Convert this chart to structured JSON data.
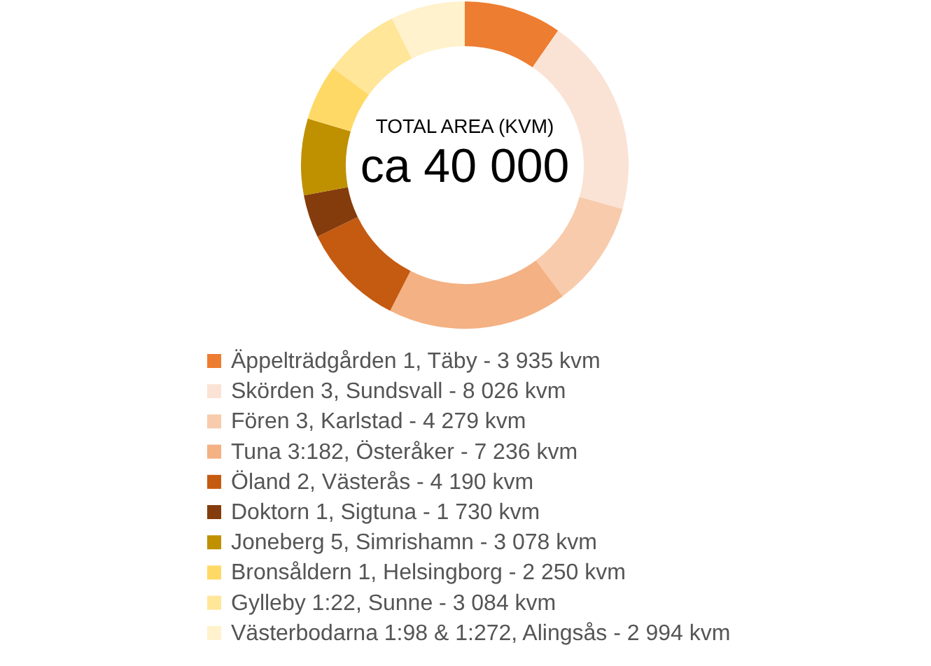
{
  "chart_data": {
    "type": "donut",
    "title": "TOTAL AREA (KVM)",
    "annotations": [
      "ca 40 000"
    ],
    "categories": [
      "Äppelträdgården 1, Täby -",
      "Skörden 3, Sundsvall -",
      "Fören 3, Karlstad -",
      "Tuna 3:182, Österåker -",
      "Öland 2, Västerås -",
      "Doktorn 1, Sigtuna -",
      "Joneberg 5, Simrishamn -",
      "Bronsåldern 1, Helsingborg -",
      "Gylleby 1:22, Sunne -",
      "Västerbodarna 1:98 & 1:272, Alingsås -"
    ],
    "values": [
      3935,
      8026,
      4279,
      7236,
      4190,
      1730,
      3078,
      2250,
      3084,
      2994
    ],
    "value_labels": [
      "3 935 kvm",
      "8 026 kvm",
      "4 279 kvm",
      "7 236 kvm",
      "4 190 kvm",
      "1 730 kvm",
      "3 078 kvm",
      "2 250 kvm",
      "3 084 kvm",
      "2 994 kvm"
    ],
    "colors": [
      "#ed7d31",
      "#fae3d5",
      "#f7cbab",
      "#f4b183",
      "#c55a11",
      "#843c0c",
      "#bf9000",
      "#ffd966",
      "#ffe699",
      "#fff2cc"
    ],
    "legend": "bottom"
  }
}
